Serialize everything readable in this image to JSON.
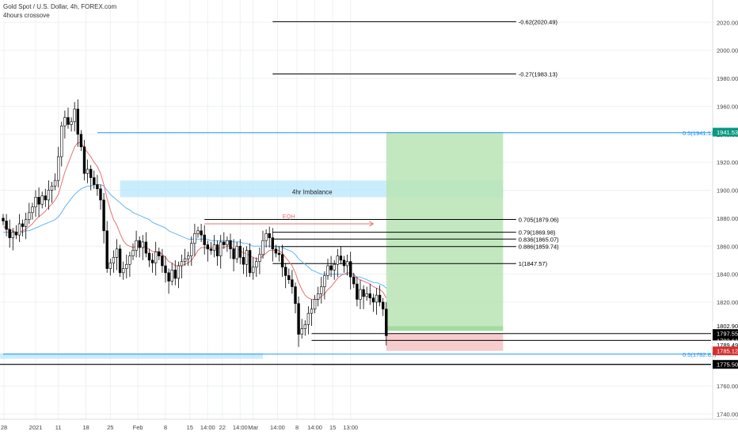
{
  "header": {
    "symbol_title": "Gold Spot / U.S. Dollar, 4h, FOREX.com",
    "indicator": "4hours crossove"
  },
  "colors": {
    "up": "#000000",
    "down": "#000000",
    "ema_fast": "#e57373",
    "ema_slow": "#64b5f6",
    "imbalance_zone": "#b3e5fc",
    "profit_zone": "#b9e4b5",
    "loss_zone": "#f6c6c6",
    "fib_line": "#000000",
    "half_line": "#2196f3",
    "badge_green": "#089981",
    "badge_red": "#d32f2f",
    "badge_black": "#000000"
  },
  "chart_data": {
    "type": "candlestick",
    "y_axis": {
      "min": 1725,
      "max": 2036,
      "ticks": [
        2020,
        2000,
        1980,
        1960,
        1940,
        1920,
        1900,
        1880,
        1860,
        1840,
        1820,
        1760,
        1740
      ]
    },
    "x_axis": {
      "ticks": [
        {
          "label": "28",
          "x": 0.25
        },
        {
          "label": "2021",
          "x": 10
        },
        {
          "label": "11",
          "x": 17
        },
        {
          "label": "18",
          "x": 25.5
        },
        {
          "label": "25",
          "x": 33
        },
        {
          "label": "Feb",
          "x": 41.5
        },
        {
          "label": "8",
          "x": 50
        },
        {
          "label": "15",
          "x": 57.5
        },
        {
          "label": "14:00",
          "x": 63
        },
        {
          "label": "22",
          "x": 67.5
        },
        {
          "label": "14:00",
          "x": 73
        },
        {
          "label": "Mar",
          "x": 77
        },
        {
          "label": "14:00",
          "x": 84.5
        },
        {
          "label": "8",
          "x": 90.5
        },
        {
          "label": "14:00",
          "x": 96
        },
        {
          "label": "15",
          "x": 101.5
        },
        {
          "label": "13:00",
          "x": 107
        }
      ]
    },
    "closes": [
      1878,
      1872,
      1866,
      1870,
      1868,
      1876,
      1874,
      1879,
      1884,
      1888,
      1895,
      1890,
      1896,
      1893,
      1900,
      1903,
      1907,
      1924,
      1946,
      1952,
      1947,
      1949,
      1958,
      1940,
      1931,
      1912,
      1915,
      1909,
      1904,
      1901,
      1893,
      1871,
      1844,
      1848,
      1852,
      1858,
      1841,
      1844,
      1847,
      1853,
      1857,
      1864,
      1859,
      1863,
      1855,
      1850,
      1848,
      1856,
      1853,
      1846,
      1841,
      1835,
      1843,
      1837,
      1846,
      1849,
      1851,
      1853,
      1862,
      1869,
      1871,
      1868,
      1861,
      1858,
      1857,
      1861,
      1853,
      1863,
      1861,
      1864,
      1858,
      1851,
      1860,
      1852,
      1847,
      1857,
      1841,
      1845,
      1849,
      1854,
      1864,
      1869,
      1866,
      1858,
      1855,
      1854,
      1845,
      1839,
      1836,
      1831,
      1819,
      1797,
      1801,
      1804,
      1812,
      1815,
      1822,
      1826,
      1831,
      1839,
      1846,
      1843,
      1847,
      1853,
      1850,
      1846,
      1849,
      1838,
      1833,
      1822,
      1829,
      1824,
      1826,
      1823,
      1820,
      1825,
      1820,
      1815,
      1796
    ],
    "ema_fast": [
      1874,
      1873,
      1872,
      1871,
      1870,
      1870,
      1871,
      1872,
      1874,
      1876,
      1879,
      1881,
      1883,
      1885,
      1888,
      1890,
      1893,
      1897,
      1905,
      1913,
      1919,
      1925,
      1931,
      1934,
      1934,
      1930,
      1927,
      1924,
      1920,
      1917,
      1912,
      1904,
      1894,
      1886,
      1879,
      1875,
      1869,
      1864,
      1861,
      1860,
      1859,
      1860,
      1860,
      1860,
      1859,
      1858,
      1856,
      1856,
      1856,
      1854,
      1852,
      1849,
      1848,
      1846,
      1846,
      1846,
      1847,
      1848,
      1850,
      1853,
      1857,
      1859,
      1859,
      1859,
      1859,
      1859,
      1858,
      1859,
      1859,
      1860,
      1860,
      1858,
      1858,
      1857,
      1855,
      1855,
      1853,
      1852,
      1851,
      1851,
      1853,
      1855,
      1857,
      1857,
      1857,
      1857,
      1855,
      1852,
      1849,
      1846,
      1841,
      1834,
      1829,
      1825,
      1823,
      1822,
      1822,
      1822,
      1824,
      1826,
      1829,
      1831,
      1834,
      1837,
      1839,
      1840,
      1841,
      1841,
      1840,
      1837,
      1836,
      1835,
      1834,
      1833,
      1831,
      1830,
      1829,
      1827,
      1823
    ],
    "ema_slow": [
      1870,
      1870,
      1870,
      1870,
      1870,
      1870,
      1870,
      1871,
      1871,
      1872,
      1873,
      1874,
      1875,
      1876,
      1877,
      1878,
      1879,
      1881,
      1884,
      1888,
      1891,
      1894,
      1897,
      1899,
      1901,
      1902,
      1903,
      1903,
      1904,
      1904,
      1904,
      1903,
      1900,
      1897,
      1895,
      1893,
      1891,
      1889,
      1887,
      1886,
      1884,
      1883,
      1882,
      1881,
      1880,
      1879,
      1877,
      1876,
      1875,
      1874,
      1873,
      1871,
      1870,
      1869,
      1868,
      1867,
      1866,
      1865,
      1865,
      1865,
      1865,
      1865,
      1865,
      1865,
      1864,
      1864,
      1864,
      1864,
      1864,
      1864,
      1864,
      1863,
      1863,
      1863,
      1862,
      1862,
      1861,
      1860,
      1860,
      1860,
      1860,
      1860,
      1860,
      1860,
      1860,
      1860,
      1859,
      1858,
      1857,
      1856,
      1854,
      1851,
      1849,
      1847,
      1845,
      1843,
      1842,
      1841,
      1840,
      1840,
      1840,
      1840,
      1840,
      1840,
      1840,
      1840,
      1840,
      1840,
      1839,
      1838,
      1838,
      1837,
      1836,
      1835,
      1834,
      1834,
      1833,
      1832,
      1830
    ],
    "fib_levels": [
      {
        "label": "-0.62(2020.49)",
        "value": 2020.49
      },
      {
        "label": "-0.27(1983.13)",
        "value": 1983.13
      },
      {
        "label": "0.705(1879.06)",
        "value": 1879.06
      },
      {
        "label": "0.79(1869.98)",
        "value": 1869.98
      },
      {
        "label": "0.836(1865.07)",
        "value": 1865.07
      },
      {
        "label": "0.886(1859.74)",
        "value": 1859.74
      },
      {
        "label": "1(1847.57)",
        "value": 1847.57
      },
      {
        "label": "0.5(1941.11)",
        "value": 1941.11
      },
      {
        "label": "0.5(1782.81)",
        "value": 1782.81
      }
    ],
    "zones": {
      "imbalance": {
        "label": "4hr Imbalance",
        "top": 1907,
        "bottom": 1895
      },
      "profit": {
        "top": 1941.53,
        "bottom": 1802.9
      },
      "loss": {
        "top": 1797.55,
        "bottom": 1785.12
      },
      "entry": 1802.9
    },
    "eqh_label": "EQH",
    "price_badges": [
      {
        "label": "1941.53",
        "value": 1941.53,
        "style": "green"
      },
      {
        "label": "1802.90",
        "value": 1802.9,
        "style": "plain"
      },
      {
        "label": "1797.55",
        "value": 1797.55,
        "style": "black"
      },
      {
        "label": "1792.61",
        "value": 1792.61,
        "style": "black"
      },
      {
        "label": "1789.49",
        "value": 1789.49,
        "style": "plain"
      },
      {
        "label": "1785.12",
        "value": 1785.12,
        "style": "red"
      },
      {
        "label": "1775.50",
        "value": 1775.5,
        "style": "black"
      }
    ]
  }
}
